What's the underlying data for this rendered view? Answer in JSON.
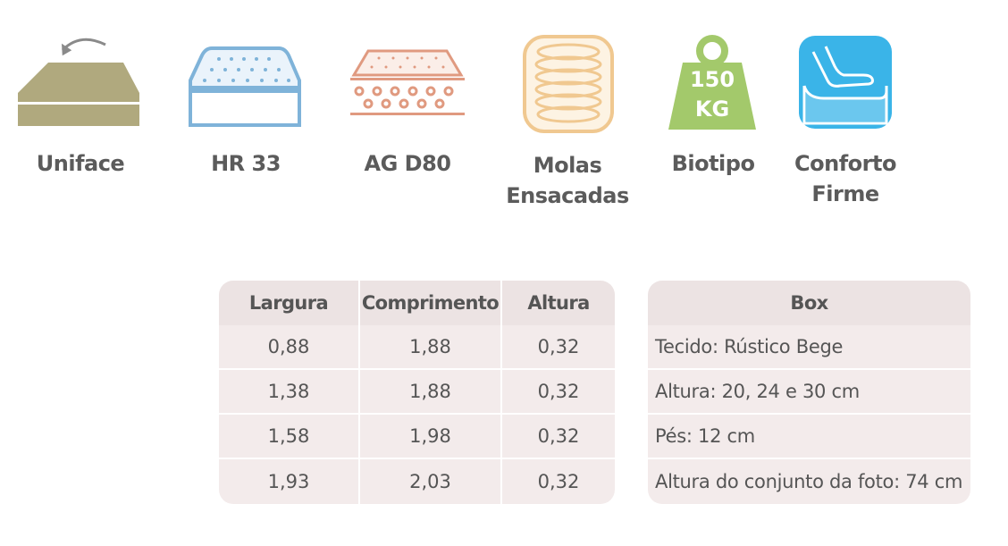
{
  "features": [
    {
      "id": "uniface",
      "label_lines": [
        "Uniface"
      ],
      "icon": "mattress-flip-icon",
      "color": "#b0a97e"
    },
    {
      "id": "hr33",
      "label_lines": [
        "HR 33"
      ],
      "icon": "foam-hr-icon",
      "color": "#7fb3d9"
    },
    {
      "id": "agd80",
      "label_lines": [
        "AG D80"
      ],
      "icon": "foam-ag-icon",
      "color": "#e09a80"
    },
    {
      "id": "molas",
      "label_lines": [
        "Molas",
        "Ensacadas"
      ],
      "icon": "pocket-springs-icon",
      "color": "#f0c890"
    },
    {
      "id": "biotipo",
      "label_lines": [
        "Biotipo"
      ],
      "icon": "weight-icon",
      "color": "#a3c96b",
      "weight_lines": [
        "150",
        "KG"
      ]
    },
    {
      "id": "conforto",
      "label_lines": [
        "Conforto",
        "Firme"
      ],
      "icon": "firm-comfort-icon",
      "color": "#3ab4e8"
    }
  ],
  "dimensions_table": {
    "headers": [
      "Largura",
      "Comprimento",
      "Altura"
    ],
    "rows": [
      [
        "0,88",
        "1,88",
        "0,32"
      ],
      [
        "1,38",
        "1,88",
        "0,32"
      ],
      [
        "1,58",
        "1,98",
        "0,32"
      ],
      [
        "1,93",
        "2,03",
        "0,32"
      ]
    ]
  },
  "box_table": {
    "header": "Box",
    "rows": [
      "Tecido: Rústico Bege",
      "Altura: 20, 24 e 30 cm",
      "Pés: 12 cm",
      "Altura do conjunto da foto: 74 cm"
    ]
  }
}
